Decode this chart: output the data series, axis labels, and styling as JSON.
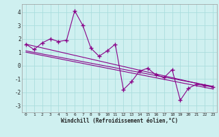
{
  "xlabel": "Windchill (Refroidissement éolien,°C)",
  "background_color": "#cff0f0",
  "grid_color": "#aadddd",
  "line_color": "#880088",
  "xlim": [
    -0.5,
    23.5
  ],
  "ylim": [
    -3.5,
    4.6
  ],
  "yticks": [
    -3,
    -2,
    -1,
    0,
    1,
    2,
    3,
    4
  ],
  "xticks": [
    0,
    1,
    2,
    3,
    4,
    5,
    6,
    7,
    8,
    9,
    10,
    11,
    12,
    13,
    14,
    15,
    16,
    17,
    18,
    19,
    20,
    21,
    22,
    23
  ],
  "series1_x": [
    0,
    1,
    2,
    3,
    4,
    5,
    6,
    7,
    8,
    9,
    10,
    11,
    12,
    13,
    14,
    15,
    16,
    17,
    18,
    19,
    20,
    21,
    22,
    23
  ],
  "series1_y": [
    1.6,
    1.2,
    1.7,
    2.0,
    1.8,
    1.9,
    4.1,
    3.0,
    1.3,
    0.7,
    1.1,
    1.6,
    -1.8,
    -1.2,
    -0.4,
    -0.2,
    -0.7,
    -0.9,
    -0.3,
    -2.6,
    -1.7,
    -1.4,
    -1.5,
    -1.6
  ],
  "series2_x": [
    0,
    23
  ],
  "series2_y": [
    1.6,
    -1.6
  ],
  "series3_x": [
    0,
    23
  ],
  "series3_y": [
    1.0,
    -1.75
  ],
  "series4_x": [
    0,
    23
  ],
  "series4_y": [
    1.1,
    -1.55
  ]
}
